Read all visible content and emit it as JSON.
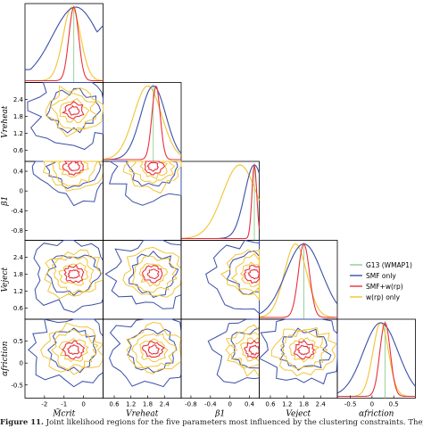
{
  "figure": {
    "caption_label": "Figure 11.",
    "caption_text": " Joint likelihood regions for the five parameters most influenced by the clustering constraints. They are M̃_crit, which controls"
  },
  "chart_data": {
    "type": "corner",
    "parameters": [
      {
        "name": "M̃_crit",
        "label": "M̃crit",
        "ticks": [
          -2,
          -1,
          0
        ],
        "range": [
          -3,
          1
        ]
      },
      {
        "name": "V_reheat",
        "label": "Vreheat",
        "ticks": [
          0.6,
          1.2,
          1.8,
          2.4
        ],
        "range": [
          0.2,
          3.0
        ]
      },
      {
        "name": "β_1",
        "label": "β1",
        "ticks": [
          -0.8,
          -0.4,
          0.0,
          0.4
        ],
        "range": [
          -1.0,
          0.6
        ]
      },
      {
        "name": "V_eject",
        "label": "Veject",
        "ticks": [
          0.6,
          1.2,
          1.8,
          2.4
        ],
        "range": [
          0.2,
          3.0
        ]
      },
      {
        "name": "α_friction",
        "label": "αfriction",
        "ticks": [
          -0.5,
          0.0,
          0.5
        ],
        "range": [
          -0.8,
          1.0
        ]
      }
    ],
    "legend": {
      "placement": "right",
      "entries": [
        {
          "label": "G13 (WMAP1)",
          "color": "#8fce8f"
        },
        {
          "label": "SMF only",
          "color": "#3b4fa8"
        },
        {
          "label": "SMF+w(rp)",
          "color": "#e8303a"
        },
        {
          "label": "w(rp) only",
          "color": "#f2c330"
        }
      ]
    },
    "g13_values": [
      -0.5,
      2.0,
      0.5,
      1.8,
      0.3
    ],
    "marginals": {
      "smf_only": {
        "mean": [
          -0.4,
          2.0,
          0.5,
          1.8,
          0.2
        ],
        "sigma": [
          1.2,
          0.45,
          0.2,
          0.65,
          0.4
        ]
      },
      "smf_wrp": {
        "mean": [
          -0.5,
          2.1,
          0.5,
          1.8,
          0.3
        ],
        "sigma": [
          0.25,
          0.15,
          0.05,
          0.2,
          0.12
        ]
      },
      "wrp_only": {
        "mean": [
          -0.6,
          1.8,
          0.2,
          1.5,
          0.2
        ],
        "sigma": [
          0.45,
          0.5,
          0.35,
          0.4,
          0.18
        ]
      }
    }
  }
}
